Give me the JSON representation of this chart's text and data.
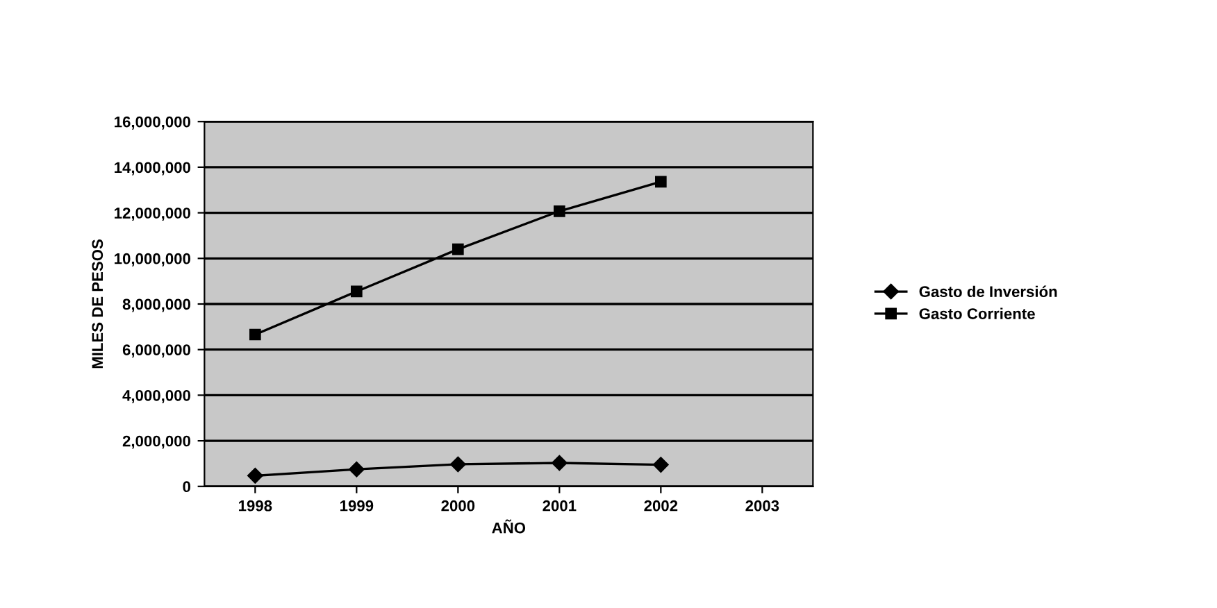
{
  "chart_data": {
    "type": "line",
    "xlabel": "AÑO",
    "ylabel": "MILES DE PESOS",
    "categories": [
      "1998",
      "1999",
      "2000",
      "2001",
      "2002",
      "2003"
    ],
    "series": [
      {
        "name": "Gasto de Inversión",
        "color": "#000000",
        "marker": "diamond",
        "values": [
          470000,
          750000,
          970000,
          1030000,
          950000,
          null
        ]
      },
      {
        "name": "Gasto Corriente",
        "color": "#000000",
        "marker": "square",
        "values": [
          6660000,
          8550000,
          10400000,
          12070000,
          13360000,
          null
        ]
      }
    ],
    "ylim": [
      0,
      16000000
    ],
    "yticks": [
      {
        "value": 0,
        "label": "0"
      },
      {
        "value": 2000000,
        "label": "2,000,000"
      },
      {
        "value": 4000000,
        "label": "4,000,000"
      },
      {
        "value": 6000000,
        "label": "6,000,000"
      },
      {
        "value": 8000000,
        "label": "8,000,000"
      },
      {
        "value": 10000000,
        "label": "10,000,000"
      },
      {
        "value": 12000000,
        "label": "12,000,000"
      },
      {
        "value": 14000000,
        "label": "14,000,000"
      },
      {
        "value": 16000000,
        "label": "16,000,000"
      }
    ],
    "grid": "y",
    "legend": "right"
  }
}
